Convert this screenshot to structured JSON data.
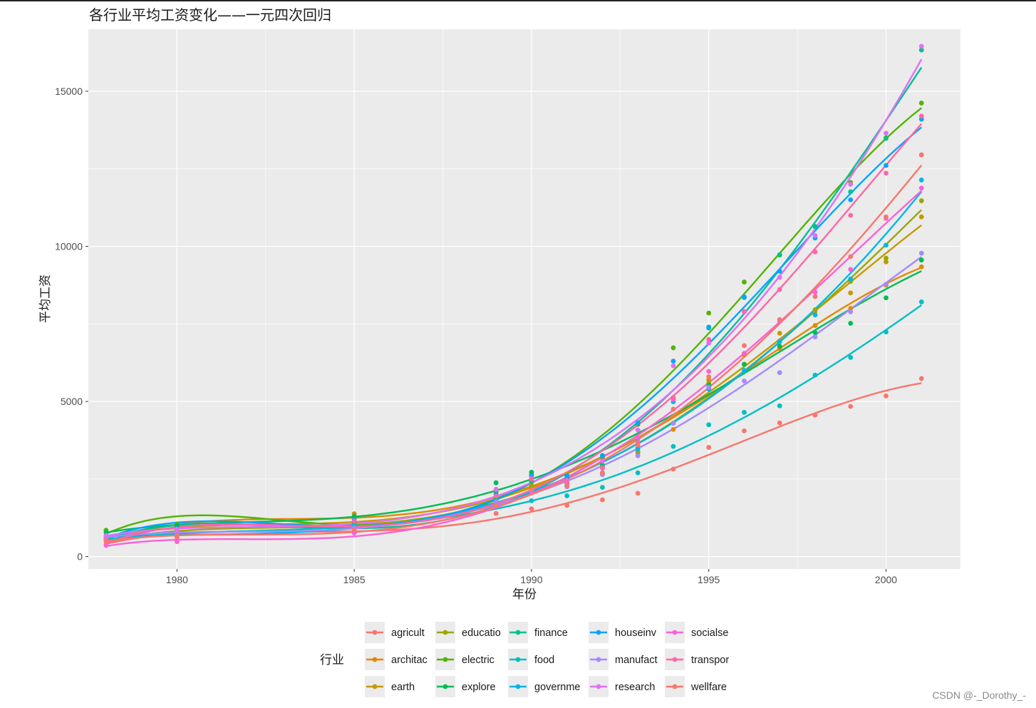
{
  "chart_data": {
    "type": "scatter",
    "title": "各行业平均工资变化——一元四次回归",
    "xlabel": "年份",
    "ylabel": "平均工资",
    "xlim": [
      1977.5,
      2002.1
    ],
    "ylim": [
      -400,
      17000
    ],
    "xticks": [
      1980,
      1985,
      1990,
      1995,
      2000
    ],
    "yticks": [
      0,
      5000,
      10000,
      15000
    ],
    "grid": true,
    "legend_title": "行业",
    "legend_position": "bottom",
    "smooth": "loess-style quartic regression line per series",
    "x": [
      1978,
      1980,
      1985,
      1989,
      1990,
      1991,
      1992,
      1993,
      1994,
      1995,
      1996,
      1997,
      1998,
      1999,
      2000,
      2001
    ],
    "series": [
      {
        "name": "agricult",
        "color": "#F8766D",
        "values": [
          470,
          620,
          880,
          1390,
          1540,
          1650,
          1830,
          2040,
          2820,
          3520,
          4050,
          4310,
          4560,
          4840,
          5180,
          5740
        ]
      },
      {
        "name": "architac",
        "color": "#E38900",
        "values": [
          600,
          760,
          1380,
          2100,
          2600,
          2650,
          2850,
          3340,
          4100,
          5600,
          6500,
          6710,
          7450,
          8000,
          8750,
          9340
        ]
      },
      {
        "name": "earth",
        "color": "#C49A00",
        "values": [
          650,
          800,
          1200,
          2000,
          2500,
          2460,
          2900,
          3500,
          4300,
          5700,
          6550,
          7200,
          7900,
          8500,
          9500,
          10950
        ]
      },
      {
        "name": "educatio",
        "color": "#99A800",
        "values": [
          560,
          720,
          1100,
          1800,
          2300,
          2380,
          2700,
          3380,
          4300,
          5560,
          6200,
          6950,
          7960,
          8870,
          9620,
          11470
        ]
      },
      {
        "name": "electric",
        "color": "#53B400",
        "values": [
          850,
          1050,
          1250,
          2080,
          2650,
          2600,
          3200,
          4260,
          6730,
          7850,
          8850,
          9720,
          10640,
          12060,
          13500,
          14620
        ]
      },
      {
        "name": "explore",
        "color": "#00BC56",
        "values": [
          780,
          1000,
          1300,
          2380,
          2720,
          2500,
          2950,
          3670,
          4990,
          5530,
          6200,
          6780,
          7220,
          7520,
          8340,
          9560
        ]
      },
      {
        "name": "finance",
        "color": "#00C094",
        "values": [
          640,
          830,
          1050,
          1900,
          2420,
          2340,
          2880,
          3800,
          5100,
          7400,
          8350,
          9730,
          10640,
          11760,
          13480,
          16330
        ]
      },
      {
        "name": "food",
        "color": "#00BFC4",
        "values": [
          560,
          700,
          1000,
          1700,
          1800,
          1960,
          2230,
          2700,
          3550,
          4250,
          4650,
          4860,
          5850,
          6420,
          7240,
          8210
        ]
      },
      {
        "name": "governme",
        "color": "#00B6EB",
        "values": [
          590,
          760,
          950,
          1780,
          2150,
          2260,
          2650,
          3470,
          5000,
          5400,
          6000,
          6930,
          7790,
          8950,
          10040,
          12140
        ]
      },
      {
        "name": "houseinv",
        "color": "#06A4FF",
        "values": [
          680,
          900,
          1200,
          2000,
          2600,
          2600,
          3260,
          4310,
          6300,
          7370,
          8370,
          9200,
          10270,
          11500,
          12610,
          14100
        ]
      },
      {
        "name": "manufact",
        "color": "#A58AFF",
        "values": [
          620,
          780,
          930,
          1760,
          2100,
          2250,
          2640,
          3250,
          4300,
          5460,
          5660,
          5930,
          7080,
          7890,
          8780,
          9780
        ]
      },
      {
        "name": "research",
        "color": "#DF70F8",
        "values": [
          670,
          880,
          1140,
          2170,
          2520,
          2460,
          3080,
          4080,
          6150,
          6880,
          7900,
          9000,
          10350,
          12000,
          13650,
          16450
        ]
      },
      {
        "name": "socialse",
        "color": "#FB61D7",
        "values": [
          360,
          480,
          760,
          1630,
          2120,
          2290,
          2860,
          3830,
          5070,
          5970,
          6550,
          7590,
          8520,
          9260,
          10900,
          11880
        ]
      },
      {
        "name": "transpor",
        "color": "#FF66A8",
        "values": [
          540,
          700,
          1150,
          1950,
          2500,
          2400,
          2860,
          3680,
          5130,
          7000,
          7880,
          8610,
          9820,
          11000,
          12360,
          14200
        ]
      },
      {
        "name": "wellfare",
        "color": "#F8766D",
        "values": [
          500,
          660,
          870,
          1650,
          2150,
          2270,
          2700,
          3600,
          4750,
          5800,
          6800,
          7640,
          8380,
          9670,
          10950,
          12950
        ]
      }
    ]
  },
  "watermark": "CSDN @-_Dorothy_-"
}
